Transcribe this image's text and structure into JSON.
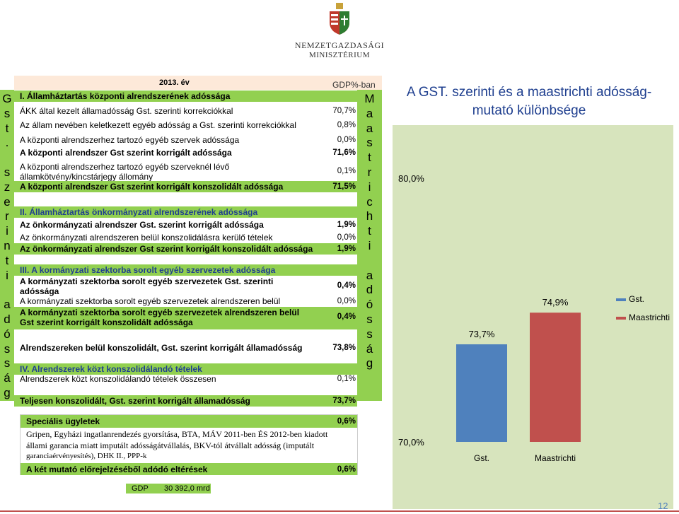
{
  "logo": {
    "line1": "NEMZETGAZDASÁGI",
    "line2": "MINISZTÉRIUM"
  },
  "header": {
    "year": "2013. év",
    "gdp_unit": "GDP%-ban"
  },
  "sidebar_left": [
    "G",
    "s",
    "t",
    ".",
    "",
    "s",
    "z",
    "e",
    "r",
    "i",
    "n",
    "t",
    "i",
    "",
    "a",
    "d",
    "ó",
    "s",
    "s",
    "á",
    "g"
  ],
  "sidebar_right": [
    "M",
    "a",
    "a",
    "s",
    "t",
    "r",
    "i",
    "c",
    "h",
    "t",
    "i",
    "",
    "a",
    "d",
    "ó",
    "s",
    "s",
    "á",
    "g"
  ],
  "rows": [
    {
      "label": "I. Államháztartás központi alrendszerének adóssága",
      "value": ""
    },
    {
      "label": "ÁKK által kezelt államadósság Gst. szerinti korrekciókkal",
      "value": "70,7%"
    },
    {
      "label": "Az állam nevében keletkezett egyéb adósság a Gst. szerinti korrekciókkal",
      "value": "0,8%"
    },
    {
      "label": "A központi alrendszerhez tartozó egyéb szervek adóssága",
      "value": "0,0%"
    },
    {
      "label": "A központi alrendszer Gst szerint korrigált adóssága",
      "value": "71,6%"
    },
    {
      "label": "A központi alrendszerhez tartozó egyéb szerveknél lévő",
      "label2": "államkötvény/kincstárjegy állomány",
      "value": "0,1%"
    },
    {
      "label": "A központi alrendszer Gst szerint korrigált konszolidált adóssága",
      "value": "71,5%"
    },
    {
      "label": "II. Államháztartás önkormányzati alrendszerének adóssága",
      "value": ""
    },
    {
      "label": "Az önkormányzati alrendszer Gst. szerint korrigált adóssága",
      "value": "1,9%"
    },
    {
      "label": "Az önkormányzati alrendszeren belül konszolidálásra kerülő tételek",
      "value": "0,0%"
    },
    {
      "label": "Az önkormányzati alrendszer Gst szerint korrigált konszolidált adóssága",
      "value": "1,9%"
    },
    {
      "label": "III. A kormányzati szektorba sorolt egyéb szervezetek adóssága",
      "value": ""
    },
    {
      "label": "A kormányzati szektorba sorolt egyéb szervezetek Gst. szerinti",
      "label2": "adóssága",
      "value": "0,4%"
    },
    {
      "label": "A  kormányzati szektorba sorolt egyéb szervezetek alrendszeren belül",
      "value": "0,0%"
    },
    {
      "label": "A  kormányzati szektorba sorolt egyéb szervezetek alrendszeren belül",
      "label2": "Gst szerint korrigált konszolidált adóssága",
      "value": "0,4%"
    },
    {
      "label": "Alrendszereken belül konszolidált, Gst. szerint korrigált államadósság",
      "value": "73,8%"
    },
    {
      "label": "IV. Alrendszerek közt konszolidálandó tételek",
      "value": ""
    },
    {
      "label": "Alrendszerek közt konszolidálandó tételek összesen",
      "value": "0,1%"
    },
    {
      "label": "Teljesen konszolidált, Gst. szerint korrigált államadósság",
      "value": "73,7%"
    }
  ],
  "special": {
    "title": "Speciális ügyletek",
    "title_value": "0,6%",
    "desc1": "Gripen, Egyházi ingatlanrendezés gyorsítása, BTA, MÁV 2011-ben ÉS 2012-ben kiadott",
    "desc2": "állami garancia miatt imputált adósságátvállalás, BKV-tól átvállalt adósság (imputált",
    "desc3": "garanciaérvényesítés),  DHK II., PPP-k",
    "diff_label": "A két mutató előrejelzéséből adódó eltérések",
    "diff_value": "0,6%"
  },
  "gdp": {
    "label": "GDP",
    "value": "30 392,0 mrd"
  },
  "chart_title": "A GST. szerinti és a maastrichti adósság-mutató különbsége",
  "page_number": "12",
  "chart_data": {
    "type": "bar",
    "categories": [
      "Gst.",
      "Maastrichti"
    ],
    "values": [
      73.7,
      74.9
    ],
    "value_labels": [
      "73,7%",
      "74,9%"
    ],
    "ylim": [
      70,
      80
    ],
    "tick_labels": [
      "80,0%",
      "70,0%"
    ],
    "legend": [
      "Gst.",
      "Maastrichti"
    ],
    "legend_position": "right",
    "colors": [
      "#4f81bd",
      "#c0504d"
    ]
  }
}
